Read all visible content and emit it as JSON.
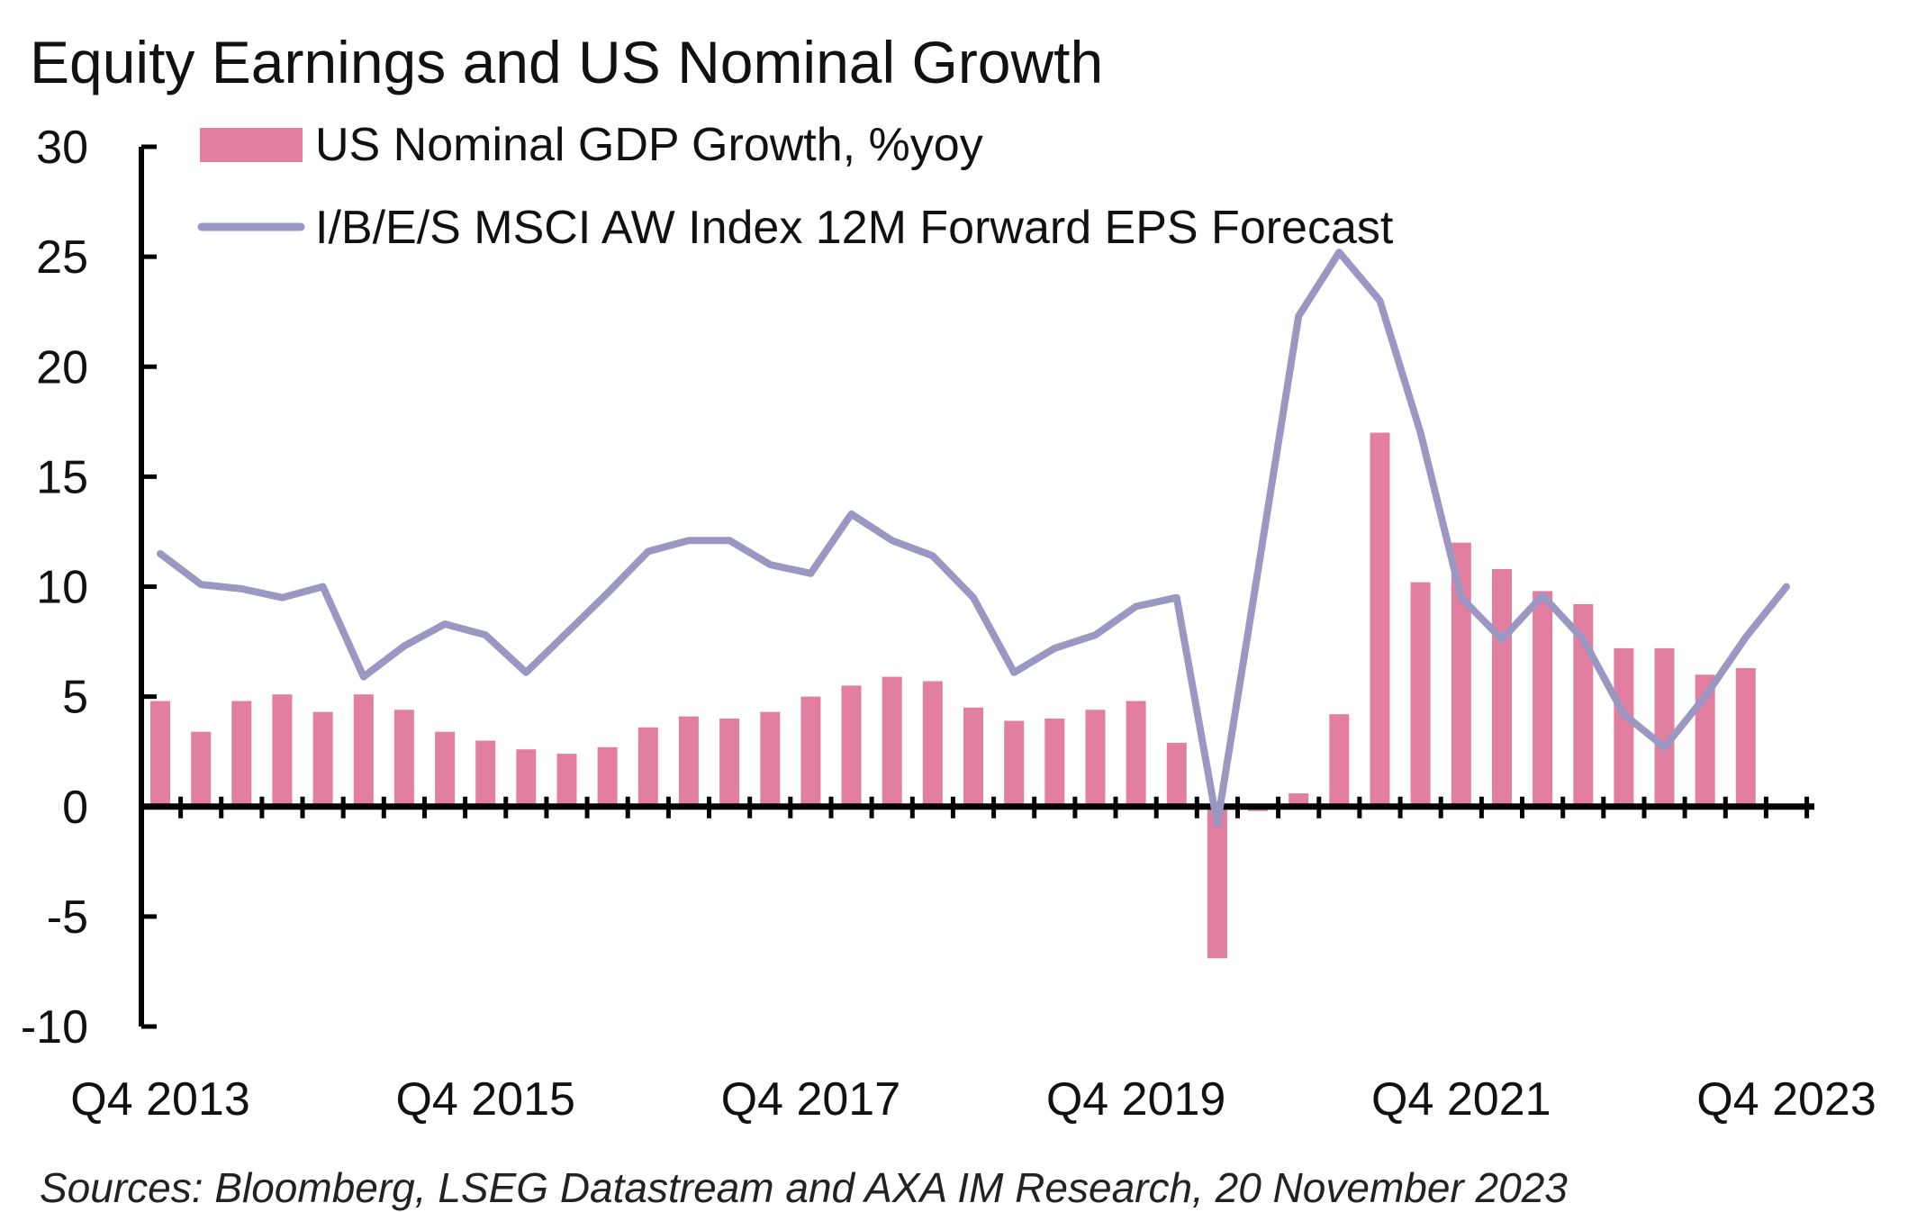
{
  "chart_data": {
    "type": "bar",
    "title": "Equity Earnings and US Nominal Growth",
    "source": "Sources: Bloomberg, LSEG Datastream and AXA IM Research, 20 November 2023",
    "xlabel": "",
    "ylabel": "",
    "ylim": [
      -10,
      30
    ],
    "yticks": [
      30,
      25,
      20,
      15,
      10,
      5,
      0,
      -5,
      -10
    ],
    "xtick_labels": [
      "Q4 2013",
      "Q4 2015",
      "Q4 2017",
      "Q4 2019",
      "Q4 2021",
      "Q4 2023"
    ],
    "legend_position": "top-left",
    "grid": false,
    "categories": [
      "Q4 2013",
      "Q1 2014",
      "Q2 2014",
      "Q3 2014",
      "Q4 2014",
      "Q1 2015",
      "Q2 2015",
      "Q3 2015",
      "Q4 2015",
      "Q1 2016",
      "Q2 2016",
      "Q3 2016",
      "Q4 2016",
      "Q1 2017",
      "Q2 2017",
      "Q3 2017",
      "Q4 2017",
      "Q1 2018",
      "Q2 2018",
      "Q3 2018",
      "Q4 2018",
      "Q1 2019",
      "Q2 2019",
      "Q3 2019",
      "Q4 2019",
      "Q1 2020",
      "Q2 2020",
      "Q3 2020",
      "Q4 2020",
      "Q1 2021",
      "Q2 2021",
      "Q3 2021",
      "Q4 2021",
      "Q1 2022",
      "Q2 2022",
      "Q3 2022",
      "Q4 2022",
      "Q1 2023",
      "Q2 2023",
      "Q3 2023",
      "Q4 2023"
    ],
    "series": [
      {
        "name": "US Nominal GDP Growth, %yoy",
        "type": "bar",
        "color": "#e27fa1",
        "values": [
          4.8,
          3.4,
          4.8,
          5.1,
          4.3,
          5.1,
          4.4,
          3.4,
          3.0,
          2.6,
          2.4,
          2.7,
          3.6,
          4.1,
          4.0,
          4.3,
          5.0,
          5.5,
          5.9,
          5.7,
          4.5,
          3.9,
          4.0,
          4.4,
          4.8,
          2.9,
          -6.9,
          -0.2,
          0.6,
          4.2,
          17.0,
          10.2,
          12.0,
          10.8,
          9.8,
          9.2,
          7.2,
          7.2,
          6.0,
          6.3,
          null
        ]
      },
      {
        "name": "I/B/E/S MSCI AW Index 12M Forward EPS Forecast",
        "type": "line",
        "color": "#9a98c3",
        "values": [
          11.5,
          10.1,
          9.9,
          9.5,
          10.0,
          5.9,
          7.3,
          8.3,
          7.8,
          6.1,
          7.9,
          9.7,
          11.6,
          12.1,
          12.1,
          11.0,
          10.6,
          13.3,
          12.1,
          11.4,
          9.5,
          6.1,
          7.2,
          7.8,
          9.1,
          9.5,
          -0.8,
          10.7,
          22.3,
          25.2,
          23.0,
          17.0,
          9.5,
          7.6,
          9.6,
          7.6,
          4.2,
          2.7,
          5.0,
          7.7,
          10.0
        ]
      }
    ]
  }
}
